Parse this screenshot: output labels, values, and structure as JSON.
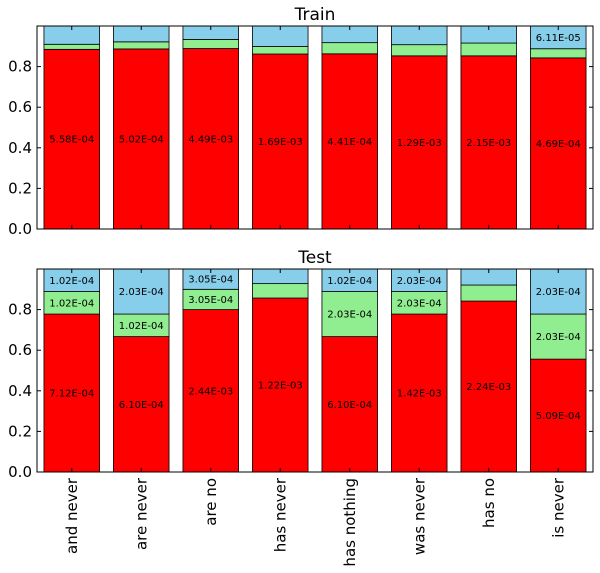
{
  "chart_data": {
    "type": "bar",
    "stacked": true,
    "categories": [
      "and never",
      "are never",
      "are no",
      "has never",
      "has nothing",
      "was never",
      "has no",
      "is never"
    ],
    "colors": {
      "bottom": "#ff0000",
      "middle": "#90ee90",
      "top": "#87ceeb"
    },
    "ylim": [
      0,
      1.0
    ],
    "yticks": [
      0.0,
      0.2,
      0.4,
      0.6,
      0.8
    ],
    "ytick_labels": [
      "0.0",
      "0.2",
      "0.4",
      "0.6",
      "0.8"
    ],
    "panels": [
      {
        "title": "Train",
        "series": [
          {
            "values": [
              0.885,
              0.887,
              0.889,
              0.862,
              0.863,
              0.853,
              0.853,
              0.843
            ]
          },
          {
            "values": [
              0.025,
              0.035,
              0.045,
              0.037,
              0.055,
              0.055,
              0.063,
              0.045
            ]
          },
          {
            "values": [
              0.09,
              0.078,
              0.066,
              0.101,
              0.082,
              0.092,
              0.084,
              0.112
            ]
          }
        ],
        "bar_labels": [
          [
            "5.58E-04",
            "5.02E-04",
            "4.49E-03",
            "1.69E-03",
            "4.41E-04",
            "1.29E-03",
            "2.15E-03",
            "4.69E-04"
          ],
          [
            "",
            "",
            "",
            "",
            "",
            "",
            "",
            ""
          ],
          [
            "",
            "",
            "",
            "",
            "",
            "",
            "",
            "6.11E-05"
          ]
        ]
      },
      {
        "title": "Test",
        "series": [
          {
            "values": [
              0.778,
              0.667,
              0.8,
              0.857,
              0.667,
              0.778,
              0.842,
              0.556
            ]
          },
          {
            "values": [
              0.111,
              0.111,
              0.1,
              0.071,
              0.222,
              0.111,
              0.079,
              0.222
            ]
          },
          {
            "values": [
              0.111,
              0.222,
              0.1,
              0.072,
              0.111,
              0.111,
              0.079,
              0.222
            ]
          }
        ],
        "bar_labels": [
          [
            "7.12E-04",
            "6.10E-04",
            "2.44E-03",
            "1.22E-03",
            "6.10E-04",
            "1.42E-03",
            "2.24E-03",
            "5.09E-04"
          ],
          [
            "1.02E-04",
            "1.02E-04",
            "3.05E-04",
            "",
            "2.03E-04",
            "2.03E-04",
            "",
            "2.03E-04"
          ],
          [
            "1.02E-04",
            "2.03E-04",
            "3.05E-04",
            "",
            "1.02E-04",
            "2.03E-04",
            "",
            "2.03E-04"
          ]
        ]
      }
    ]
  }
}
